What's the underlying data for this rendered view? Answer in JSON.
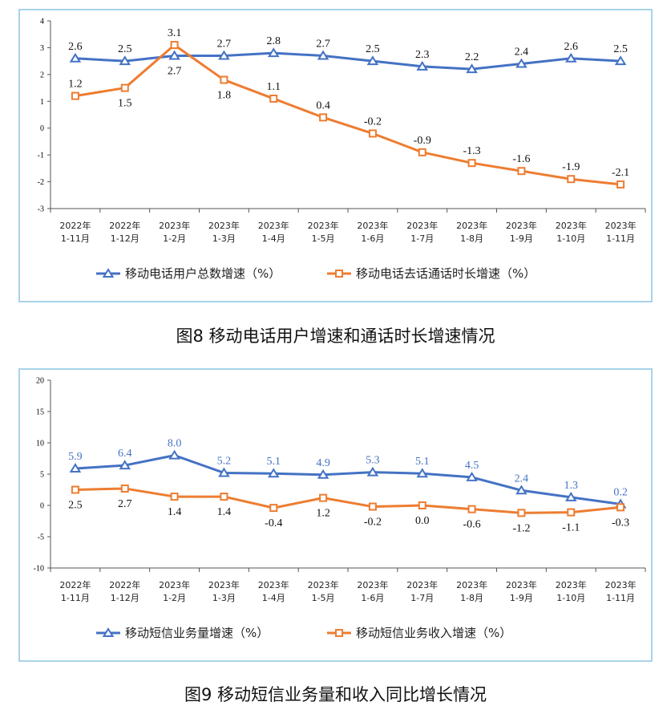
{
  "colors": {
    "blue": "#4472c4",
    "orange": "#ed7d31",
    "panel_border": "#a9d3ea"
  },
  "chart_data": [
    {
      "type": "line",
      "title": "图8 移动电话用户增速和通话时长增速情况",
      "categories": [
        [
          "2022年",
          "1-11月"
        ],
        [
          "2022年",
          "1-12月"
        ],
        [
          "2023年",
          "1-2月"
        ],
        [
          "2023年",
          "1-3月"
        ],
        [
          "2023年",
          "1-4月"
        ],
        [
          "2023年",
          "1-5月"
        ],
        [
          "2023年",
          "1-6月"
        ],
        [
          "2023年",
          "1-7月"
        ],
        [
          "2023年",
          "1-8月"
        ],
        [
          "2023年",
          "1-9月"
        ],
        [
          "2023年",
          "1-10月"
        ],
        [
          "2023年",
          "1-11月"
        ]
      ],
      "ylim": [
        -3,
        4
      ],
      "yticks": [
        4,
        3,
        2,
        1,
        0,
        -1,
        -2,
        -3
      ],
      "xlabel": "",
      "ylabel": "",
      "legend_position": "bottom",
      "series": [
        {
          "name": "移动电话用户总数增速（%）",
          "marker": "triangle",
          "color": "#4472c4",
          "values": [
            2.6,
            2.5,
            2.7,
            2.7,
            2.8,
            2.7,
            2.5,
            2.3,
            2.2,
            2.4,
            2.6,
            2.5
          ],
          "labels": [
            "2.6",
            "2.5",
            "2.7",
            "2.7",
            "2.8",
            "2.7",
            "2.5",
            "2.3",
            "2.2",
            "2.4",
            "2.6",
            "2.5"
          ],
          "label_pos": [
            "above",
            "above",
            "below",
            "above",
            "above",
            "above",
            "above",
            "above",
            "above",
            "above",
            "above",
            "above"
          ]
        },
        {
          "name": "移动电话去话通话时长增速（%）",
          "marker": "square",
          "color": "#ed7d31",
          "values": [
            1.2,
            1.5,
            3.1,
            1.8,
            1.1,
            0.4,
            -0.2,
            -0.9,
            -1.3,
            -1.6,
            -1.9,
            -2.1
          ],
          "labels": [
            "1.2",
            "1.5",
            "3.1",
            "1.8",
            "1.1",
            "0.4",
            "-0.2",
            "-0.9",
            "-1.3",
            "-1.6",
            "-1.9",
            "-2.1"
          ],
          "label_pos": [
            "above",
            "below",
            "above",
            "below",
            "above",
            "above",
            "above",
            "above",
            "above",
            "above",
            "above",
            "above"
          ]
        }
      ]
    },
    {
      "type": "line",
      "title": "图9 移动短信业务量和收入同比增长情况",
      "categories": [
        [
          "2022年",
          "1-11月"
        ],
        [
          "2022年",
          "1-12月"
        ],
        [
          "2023年",
          "1-2月"
        ],
        [
          "2023年",
          "1-3月"
        ],
        [
          "2023年",
          "1-4月"
        ],
        [
          "2023年",
          "1-5月"
        ],
        [
          "2023年",
          "1-6月"
        ],
        [
          "2023年",
          "1-7月"
        ],
        [
          "2023年",
          "1-8月"
        ],
        [
          "2023年",
          "1-9月"
        ],
        [
          "2023年",
          "1-10月"
        ],
        [
          "2023年",
          "1-11月"
        ]
      ],
      "ylim": [
        -10,
        20
      ],
      "yticks": [
        20,
        15,
        10,
        5,
        0,
        -5,
        -10
      ],
      "xlabel": "",
      "ylabel": "",
      "legend_position": "bottom",
      "series": [
        {
          "name": "移动短信业务量增速（%）",
          "marker": "triangle",
          "color": "#4472c4",
          "values": [
            5.9,
            6.4,
            8.0,
            5.2,
            5.1,
            4.9,
            5.3,
            5.1,
            4.5,
            2.4,
            1.3,
            0.2
          ],
          "labels": [
            "5.9",
            "6.4",
            "8.0",
            "5.2",
            "5.1",
            "4.9",
            "5.3",
            "5.1",
            "4.5",
            "2.4",
            "1.3",
            "0.2"
          ],
          "label_pos": [
            "above",
            "above",
            "above",
            "above",
            "above",
            "above",
            "above",
            "above",
            "above",
            "above",
            "above",
            "above"
          ]
        },
        {
          "name": "移动短信业务收入增速（%）",
          "marker": "square",
          "color": "#ed7d31",
          "values": [
            2.5,
            2.7,
            1.4,
            1.4,
            -0.4,
            1.2,
            -0.2,
            0.0,
            -0.6,
            -1.2,
            -1.1,
            -0.3
          ],
          "labels": [
            "2.5",
            "2.7",
            "1.4",
            "1.4",
            "-0.4",
            "1.2",
            "-0.2",
            "0.0",
            "-0.6",
            "-1.2",
            "-1.1",
            "-0.3"
          ],
          "label_pos": [
            "below",
            "below",
            "below",
            "below",
            "below",
            "below",
            "below",
            "below",
            "below",
            "below",
            "below",
            "below"
          ]
        }
      ]
    }
  ]
}
